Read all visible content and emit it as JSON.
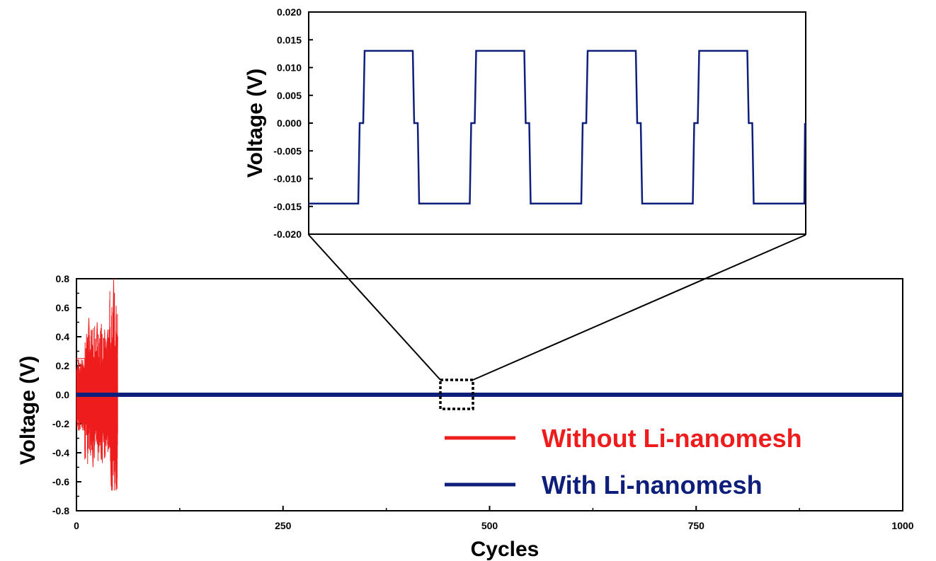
{
  "chart_data": [
    {
      "type": "line",
      "panel": "main",
      "xlabel": "Cycles",
      "ylabel": "Voltage (V)",
      "xlim": [
        0,
        1000
      ],
      "ylim": [
        -0.8,
        0.8
      ],
      "xticks": [
        "0",
        "250",
        "500",
        "750",
        "1000"
      ],
      "yticks": [
        "0.8",
        "0.6",
        "0.4",
        "0.2",
        "0.0",
        "-0.2",
        "-0.4",
        "-0.6",
        "-0.8"
      ],
      "legend_position": "bottom-right",
      "series": [
        {
          "name": "Without Li-nanomesh",
          "color": "#ee1c1c",
          "x_range": [
            0,
            50
          ],
          "y_envelope": [
            -0.66,
            0.8
          ],
          "points": [
            [
              0,
              0.25
            ],
            [
              10,
              0.25
            ],
            [
              10,
              -0.38
            ],
            [
              15,
              0.53
            ],
            [
              20,
              -0.5
            ],
            [
              25,
              0.5
            ],
            [
              30,
              -0.45
            ],
            [
              38,
              0.45
            ],
            [
              42,
              -0.63
            ],
            [
              45,
              0.8
            ],
            [
              48,
              -0.66
            ],
            [
              50,
              0.4
            ]
          ]
        },
        {
          "name": "With Li-nanomesh",
          "color": "#0d1f7a",
          "x_range": [
            0,
            1000
          ],
          "y_envelope": [
            -0.0145,
            0.013
          ]
        }
      ],
      "zoom_box": {
        "x": [
          441,
          480
        ],
        "y": [
          -0.1,
          0.1
        ]
      }
    },
    {
      "type": "line",
      "panel": "inset",
      "ylabel": "Voltage (V)",
      "ylim": [
        -0.02,
        0.02
      ],
      "yticks": [
        "0.020",
        "0.015",
        "0.010",
        "0.005",
        "0.000",
        "-0.005",
        "-0.010",
        "-0.015",
        "-0.020"
      ],
      "series": [
        {
          "name": "With Li-nanomesh",
          "color": "#0d1f7a",
          "cycles_shown": 4,
          "high": 0.013,
          "low": -0.0145
        }
      ]
    }
  ]
}
